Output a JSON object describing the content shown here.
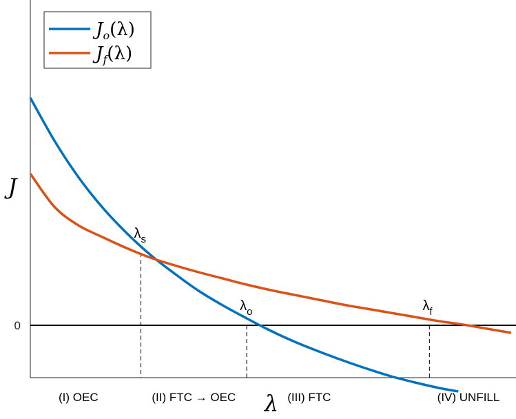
{
  "chart_data": {
    "type": "line",
    "ylabel": "J",
    "xlabel": "λ",
    "y_ticks": [
      "0"
    ],
    "grid": false,
    "legend_position": "top-left",
    "series": [
      {
        "name": "J_o(λ)",
        "legend": {
          "base": "J",
          "sub": "o",
          "arg": "(λ)"
        },
        "color": "#0072BD",
        "x": [
          0.0,
          0.05,
          0.1,
          0.15,
          0.2,
          0.25,
          0.3,
          0.35,
          0.4,
          0.45,
          0.5,
          0.55,
          0.6,
          0.65,
          0.7,
          0.75,
          0.8,
          0.85,
          0.89
        ],
        "y": [
          3.3,
          2.68,
          2.15,
          1.71,
          1.34,
          1.02,
          0.75,
          0.5,
          0.29,
          0.1,
          -0.08,
          -0.24,
          -0.38,
          -0.51,
          -0.63,
          -0.74,
          -0.83,
          -0.91,
          -0.96
        ]
      },
      {
        "name": "J_f(λ)",
        "legend": {
          "base": "J",
          "sub": "f",
          "arg": "(λ)"
        },
        "color": "#D95319",
        "x": [
          0.0,
          0.05,
          0.1,
          0.15,
          0.2,
          0.25,
          0.3,
          0.35,
          0.4,
          0.45,
          0.5,
          0.55,
          0.6,
          0.65,
          0.7,
          0.75,
          0.8,
          0.85,
          0.9,
          0.95,
          1.0
        ],
        "y": [
          2.2,
          1.72,
          1.45,
          1.28,
          1.12,
          0.98,
          0.87,
          0.77,
          0.68,
          0.59,
          0.51,
          0.44,
          0.37,
          0.3,
          0.24,
          0.18,
          0.12,
          0.06,
          0.01,
          -0.05,
          -0.11
        ]
      }
    ],
    "markers": [
      {
        "label": "λ",
        "sub": "s",
        "x": 0.23,
        "y": 1.05
      },
      {
        "label": "λ",
        "sub": "o",
        "x": 0.45,
        "y": 0.0
      },
      {
        "label": "λ",
        "sub": "f",
        "x": 0.83,
        "y": 0.0
      }
    ],
    "regions": [
      {
        "label": "(I) OEC",
        "x": 0.1
      },
      {
        "label": "(II) FTC → OEC",
        "x": 0.34
      },
      {
        "label": "(III) FTC",
        "x": 0.58
      },
      {
        "label": "(IV) UNFILL",
        "x": 0.93
      }
    ],
    "xlim": [
      0,
      1
    ],
    "ylim": [
      -1.0,
      6.0
    ]
  }
}
